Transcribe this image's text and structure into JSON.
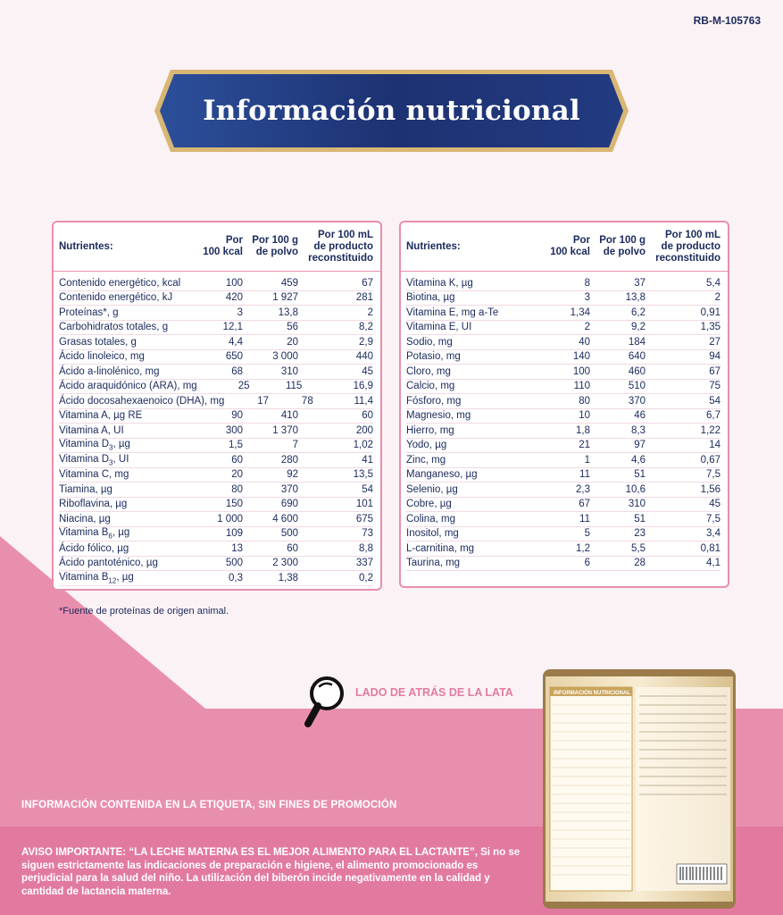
{
  "code": "RB-M-105763",
  "title": "Información nutricional",
  "headers": {
    "nutrient": "Nutrientes:",
    "per_kcal": [
      "Por",
      "100 kcal"
    ],
    "per_100g": [
      "Por 100 g",
      "de polvo"
    ],
    "per_100ml": [
      "Por 100 mL",
      "de producto",
      "reconstituido"
    ]
  },
  "table_left": [
    {
      "name": "Contenido energético, kcal",
      "kcal": "100",
      "g": "459",
      "ml": "67"
    },
    {
      "name": "Contenido energético, kJ",
      "kcal": "420",
      "g": "1 927",
      "ml": "281"
    },
    {
      "name": "Proteínas*, g",
      "kcal": "3",
      "g": "13,8",
      "ml": "2"
    },
    {
      "name": "Carbohidratos totales, g",
      "kcal": "12,1",
      "g": "56",
      "ml": "8,2"
    },
    {
      "name": "Grasas totales, g",
      "kcal": "4,4",
      "g": "20",
      "ml": "2,9"
    },
    {
      "name": "Ácido linoleico, mg",
      "kcal": "650",
      "g": "3 000",
      "ml": "440"
    },
    {
      "name": "Ácido a-linolénico, mg",
      "kcal": "68",
      "g": "310",
      "ml": "45"
    },
    {
      "name": "Ácido araquidónico (ARA), mg",
      "kcal": "25",
      "g": "115",
      "ml": "16,9"
    },
    {
      "name": "Ácido docosahexaenoico (DHA), mg",
      "kcal": "17",
      "g": "78",
      "ml": "11,4"
    },
    {
      "name": "Vitamina A, µg RE",
      "kcal": "90",
      "g": "410",
      "ml": "60"
    },
    {
      "name": "Vitamina A, UI",
      "kcal": "300",
      "g": "1 370",
      "ml": "200"
    },
    {
      "name": "Vitamina D3, µg",
      "kcal": "1,5",
      "g": "7",
      "ml": "1,02"
    },
    {
      "name": "Vitamina D3, UI",
      "kcal": "60",
      "g": "280",
      "ml": "41"
    },
    {
      "name": "Vitamina C, mg",
      "kcal": "20",
      "g": "92",
      "ml": "13,5"
    },
    {
      "name": "Tiamina, µg",
      "kcal": "80",
      "g": "370",
      "ml": "54"
    },
    {
      "name": "Riboflavina, µg",
      "kcal": "150",
      "g": "690",
      "ml": "101"
    },
    {
      "name": "Niacina, µg",
      "kcal": "1 000",
      "g": "4 600",
      "ml": "675"
    },
    {
      "name": "Vitamina B6, µg",
      "kcal": "109",
      "g": "500",
      "ml": "73"
    },
    {
      "name": "Ácido fólico, µg",
      "kcal": "13",
      "g": "60",
      "ml": "8,8"
    },
    {
      "name": "Ácido pantoténico, µg",
      "kcal": "500",
      "g": "2 300",
      "ml": "337"
    },
    {
      "name": "Vitamina B12, µg",
      "kcal": "0,3",
      "g": "1,38",
      "ml": "0,2"
    }
  ],
  "table_right": [
    {
      "name": "Vitamina K, µg",
      "kcal": "8",
      "g": "37",
      "ml": "5,4"
    },
    {
      "name": "Biotina, µg",
      "kcal": "3",
      "g": "13,8",
      "ml": "2"
    },
    {
      "name": "Vitamina E, mg a-Te",
      "kcal": "1,34",
      "g": "6,2",
      "ml": "0,91"
    },
    {
      "name": "Vitamina E, UI",
      "kcal": "2",
      "g": "9,2",
      "ml": "1,35"
    },
    {
      "name": "Sodio, mg",
      "kcal": "40",
      "g": "184",
      "ml": "27"
    },
    {
      "name": "Potasio, mg",
      "kcal": "140",
      "g": "640",
      "ml": "94"
    },
    {
      "name": "Cloro, mg",
      "kcal": "100",
      "g": "460",
      "ml": "67"
    },
    {
      "name": "Calcio, mg",
      "kcal": "110",
      "g": "510",
      "ml": "75"
    },
    {
      "name": "Fósforo, mg",
      "kcal": "80",
      "g": "370",
      "ml": "54"
    },
    {
      "name": "Magnesio, mg",
      "kcal": "10",
      "g": "46",
      "ml": "6,7"
    },
    {
      "name": "Hierro, mg",
      "kcal": "1,8",
      "g": "8,3",
      "ml": "1,22"
    },
    {
      "name": "Yodo, µg",
      "kcal": "21",
      "g": "97",
      "ml": "14"
    },
    {
      "name": "Zinc, mg",
      "kcal": "1",
      "g": "4,6",
      "ml": "0,67"
    },
    {
      "name": "Manganeso, µg",
      "kcal": "11",
      "g": "51",
      "ml": "7,5"
    },
    {
      "name": "Selenio, µg",
      "kcal": "2,3",
      "g": "10,6",
      "ml": "1,56"
    },
    {
      "name": "Cobre, µg",
      "kcal": "67",
      "g": "310",
      "ml": "45"
    },
    {
      "name": "Colina, mg",
      "kcal": "11",
      "g": "51",
      "ml": "7,5"
    },
    {
      "name": "Inositol, mg",
      "kcal": "5",
      "g": "23",
      "ml": "3,4"
    },
    {
      "name": "L-carnitina, mg",
      "kcal": "1,2",
      "g": "5,5",
      "ml": "0,81"
    },
    {
      "name": "Taurina, mg",
      "kcal": "6",
      "g": "28",
      "ml": "4,1"
    }
  ],
  "footnote": "*Fuente de proteínas de origen animal.",
  "lado_label": "LADO DE ATRÁS DE LA LATA",
  "info_label": "INFORMACIÓN CONTENIDA EN LA ETIQUETA, SIN FINES DE PROMOCIÓN",
  "aviso": "AVISO IMPORTANTE: “LA LECHE MATERNA ES EL MEJOR ALIMENTO PARA EL LACTANTE”, Si no se siguen estrictamente las indicaciones de preparación e higiene, el alimento promocionado es perjudicial para la salud del niño. La utilización del biberón incide negativamente en la calidad y cantidad de lactancia materna.",
  "can_label": "INFORMACIÓN NUTRICIONAL",
  "colors": {
    "navy": "#1b2a5c",
    "pink": "#e98fae",
    "gold": "#c9a45c"
  }
}
